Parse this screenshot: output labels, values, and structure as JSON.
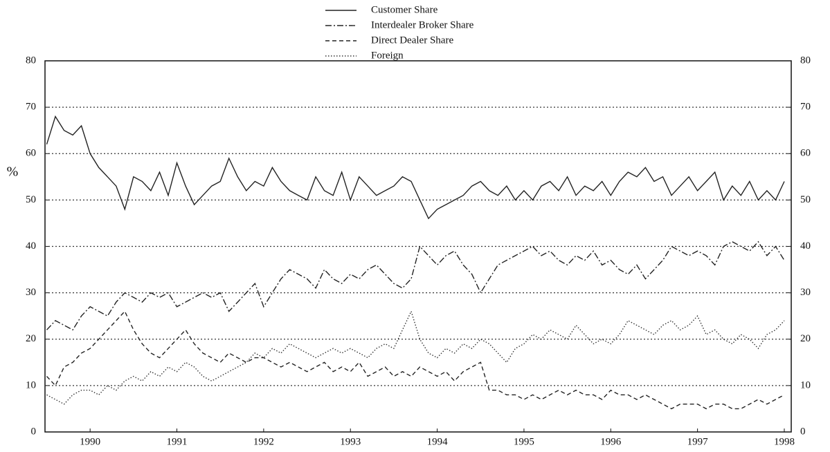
{
  "chart_data": {
    "type": "line",
    "y_label": "%",
    "xlim": [
      1989.48,
      1998.08
    ],
    "xticks": [
      1990,
      1991,
      1992,
      1993,
      1994,
      1995,
      1996,
      1997,
      1998
    ],
    "ylim": [
      0,
      80
    ],
    "yticks": [
      0,
      10,
      20,
      30,
      40,
      50,
      60,
      70,
      80
    ],
    "grid": true,
    "legend": "top",
    "x": [
      1989.5,
      1989.6,
      1989.7,
      1989.8,
      1989.9,
      1990.0,
      1990.1,
      1990.2,
      1990.3,
      1990.4,
      1990.5,
      1990.6,
      1990.7,
      1990.8,
      1990.9,
      1991.0,
      1991.1,
      1991.2,
      1991.3,
      1991.4,
      1991.5,
      1991.6,
      1991.7,
      1991.8,
      1991.9,
      1992.0,
      1992.1,
      1992.2,
      1992.3,
      1992.4,
      1992.5,
      1992.6,
      1992.7,
      1992.8,
      1992.9,
      1993.0,
      1993.1,
      1993.2,
      1993.3,
      1993.4,
      1993.5,
      1993.6,
      1993.7,
      1993.8,
      1993.9,
      1994.0,
      1994.1,
      1994.2,
      1994.3,
      1994.4,
      1994.5,
      1994.6,
      1994.7,
      1994.8,
      1994.9,
      1995.0,
      1995.1,
      1995.2,
      1995.3,
      1995.4,
      1995.5,
      1995.6,
      1995.7,
      1995.8,
      1995.9,
      1996.0,
      1996.1,
      1996.2,
      1996.3,
      1996.4,
      1996.5,
      1996.6,
      1996.7,
      1996.8,
      1996.9,
      1997.0,
      1997.1,
      1997.2,
      1997.3,
      1997.4,
      1997.5,
      1997.6,
      1997.7,
      1997.8,
      1997.9,
      1998.0
    ],
    "series": [
      {
        "name": "Customer Share",
        "color": "#222222",
        "dash": "solid",
        "values": [
          62,
          68,
          65,
          64,
          66,
          60,
          57,
          55,
          53,
          48,
          55,
          54,
          52,
          56,
          51,
          58,
          53,
          49,
          51,
          53,
          54,
          59,
          55,
          52,
          54,
          53,
          57,
          54,
          52,
          51,
          50,
          55,
          52,
          51,
          56,
          50,
          55,
          53,
          51,
          52,
          53,
          55,
          54,
          50,
          46,
          48,
          49,
          50,
          51,
          53,
          54,
          52,
          51,
          53,
          50,
          52,
          50,
          53,
          54,
          52,
          55,
          51,
          53,
          52,
          54,
          51,
          54,
          56,
          55,
          57,
          54,
          55,
          51,
          53,
          55,
          52,
          54,
          56,
          50,
          53,
          51,
          54,
          50,
          52,
          50,
          54
        ]
      },
      {
        "name": "Interdealer Broker Share",
        "color": "#222222",
        "dash": "dashdot",
        "values": [
          22,
          24,
          23,
          22,
          25,
          27,
          26,
          25,
          28,
          30,
          29,
          28,
          30,
          29,
          30,
          27,
          28,
          29,
          30,
          29,
          30,
          26,
          28,
          30,
          32,
          27,
          30,
          33,
          35,
          34,
          33,
          31,
          35,
          33,
          32,
          34,
          33,
          35,
          36,
          34,
          32,
          31,
          33,
          40,
          38,
          36,
          38,
          39,
          36,
          34,
          30,
          33,
          36,
          37,
          38,
          39,
          40,
          38,
          39,
          37,
          36,
          38,
          37,
          39,
          36,
          37,
          35,
          34,
          36,
          33,
          35,
          37,
          40,
          39,
          38,
          39,
          38,
          36,
          40,
          41,
          40,
          39,
          41,
          38,
          40,
          37
        ]
      },
      {
        "name": "Direct Dealer Share",
        "color": "#222222",
        "dash": "dash",
        "values": [
          12,
          10,
          14,
          15,
          17,
          18,
          20,
          22,
          24,
          26,
          22,
          19,
          17,
          16,
          18,
          20,
          22,
          19,
          17,
          16,
          15,
          17,
          16,
          15,
          16,
          16,
          15,
          14,
          15,
          14,
          13,
          14,
          15,
          13,
          14,
          13,
          15,
          12,
          13,
          14,
          12,
          13,
          12,
          14,
          13,
          12,
          13,
          11,
          13,
          14,
          15,
          9,
          9,
          8,
          8,
          7,
          8,
          7,
          8,
          9,
          8,
          9,
          8,
          8,
          7,
          9,
          8,
          8,
          7,
          8,
          7,
          6,
          5,
          6,
          6,
          6,
          5,
          6,
          6,
          5,
          5,
          6,
          7,
          6,
          7,
          8
        ]
      },
      {
        "name": "Foreign",
        "color": "#333333",
        "dash": "dot",
        "values": [
          8,
          7,
          6,
          8,
          9,
          9,
          8,
          10,
          9,
          11,
          12,
          11,
          13,
          12,
          14,
          13,
          15,
          14,
          12,
          11,
          12,
          13,
          14,
          15,
          17,
          16,
          18,
          17,
          19,
          18,
          17,
          16,
          17,
          18,
          17,
          18,
          17,
          16,
          18,
          19,
          18,
          22,
          26,
          20,
          17,
          16,
          18,
          17,
          19,
          18,
          20,
          19,
          17,
          15,
          18,
          19,
          21,
          20,
          22,
          21,
          20,
          23,
          21,
          19,
          20,
          19,
          21,
          24,
          23,
          22,
          21,
          23,
          24,
          22,
          23,
          25,
          21,
          22,
          20,
          19,
          21,
          20,
          18,
          21,
          22,
          24
        ]
      }
    ]
  }
}
